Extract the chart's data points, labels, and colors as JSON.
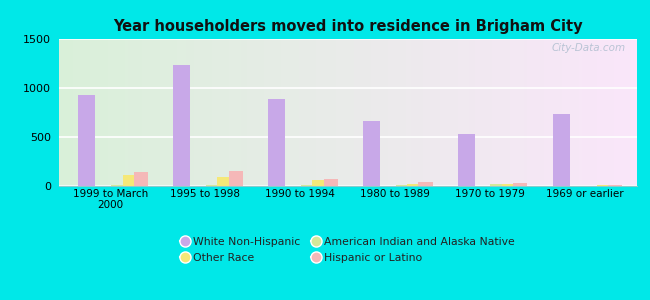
{
  "title": "Year householders moved into residence in Brigham City",
  "categories": [
    "1999 to March\n2000",
    "1995 to 1998",
    "1990 to 1994",
    "1980 to 1989",
    "1970 to 1979",
    "1969 or earlier"
  ],
  "series": {
    "White Non-Hispanic": [
      930,
      1230,
      890,
      665,
      535,
      730
    ],
    "American Indian and Alaska Native": [
      12,
      12,
      8,
      8,
      18,
      5
    ],
    "Other Race": [
      110,
      95,
      65,
      25,
      25,
      10
    ],
    "Hispanic or Latino": [
      140,
      148,
      72,
      45,
      35,
      10
    ]
  },
  "colors": {
    "White Non-Hispanic": "#c8a8e8",
    "American Indian and Alaska Native": "#d4e89a",
    "Other Race": "#f5e878",
    "Hispanic or Latino": "#f5b8b8"
  },
  "ylim": [
    0,
    1500
  ],
  "yticks": [
    0,
    500,
    1000,
    1500
  ],
  "background_outer": "#00e8e8",
  "watermark": "City-Data.com",
  "bar_width": 0.15
}
